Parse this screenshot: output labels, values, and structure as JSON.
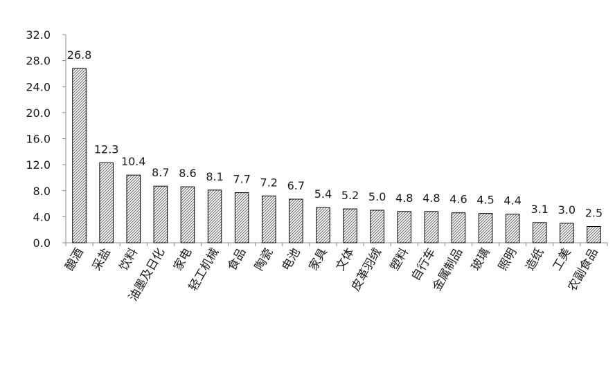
{
  "chart_data": {
    "type": "bar",
    "title": "",
    "xlabel": "",
    "ylabel": "",
    "ylim": [
      0,
      32
    ],
    "yticks": [
      "0.0",
      "4.0",
      "8.0",
      "12.0",
      "16.0",
      "20.0",
      "24.0",
      "28.0",
      "32.0"
    ],
    "categories": [
      "酿酒",
      "采盐",
      "饮料",
      "油墨及日化",
      "家电",
      "轻工机械",
      "食品",
      "陶瓷",
      "电池",
      "家具",
      "文体",
      "皮革羽绒",
      "塑料",
      "自行车",
      "金属制品",
      "玻璃",
      "照明",
      "造纸",
      "工美",
      "农副食品"
    ],
    "values": [
      26.8,
      12.3,
      10.4,
      8.7,
      8.6,
      8.1,
      7.7,
      7.2,
      6.7,
      5.4,
      5.2,
      5.0,
      4.8,
      4.8,
      4.6,
      4.5,
      4.4,
      3.1,
      3.0,
      2.5
    ],
    "value_labels": [
      "26.8",
      "12.3",
      "10.4",
      "8.7",
      "8.6",
      "8.1",
      "7.7",
      "7.2",
      "6.7",
      "5.4",
      "5.2",
      "5.0",
      "4.8",
      "4.8",
      "4.6",
      "4.5",
      "4.4",
      "3.1",
      "3.0",
      "2.5"
    ],
    "grid": false,
    "legend": "none",
    "bar_fill": "diagonal-hatch",
    "colors": {
      "bar_stroke": "#000000",
      "hatch": "#555555",
      "axis": "#888888",
      "text": "#1a1a1a"
    }
  }
}
